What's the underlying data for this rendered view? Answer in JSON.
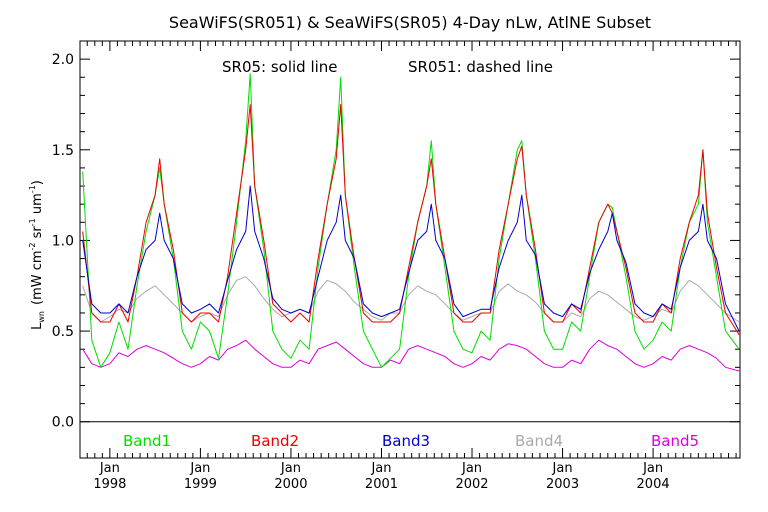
{
  "chart_data": {
    "type": "line",
    "title": "SeaWiFS(SR051) & SeaWiFS(SR05) 4-Day nLw, AtlNE Subset",
    "annotations": {
      "solid": "SR05: solid line",
      "dashed": "SR051: dashed line"
    },
    "ylabel": "L_wn (mW cm^-2 sr^-1 um^-1)",
    "ylabel_parts": {
      "l": "L",
      "l_sub": "wn",
      "open": "(mW cm",
      "e1": "-2",
      "mid1": " sr",
      "e2": "-1",
      "mid2": " um",
      "e3": "-1",
      "close": ")"
    },
    "xlabel": "",
    "xlim": [
      1997.67,
      2004.96
    ],
    "ylim": [
      -0.2,
      2.1
    ],
    "yticks": [
      {
        "value": 0.0,
        "label": "0.0"
      },
      {
        "value": 0.5,
        "label": "0.5"
      },
      {
        "value": 1.0,
        "label": "1.0"
      },
      {
        "value": 1.5,
        "label": "1.5"
      },
      {
        "value": 2.0,
        "label": "2.0"
      }
    ],
    "xticks": [
      {
        "value": 1998.0,
        "month": "Jan",
        "year": "1998"
      },
      {
        "value": 1999.0,
        "month": "Jan",
        "year": "1999"
      },
      {
        "value": 2000.0,
        "month": "Jan",
        "year": "2000"
      },
      {
        "value": 2001.0,
        "month": "Jan",
        "year": "2001"
      },
      {
        "value": 2002.0,
        "month": "Jan",
        "year": "2002"
      },
      {
        "value": 2003.0,
        "month": "Jan",
        "year": "2003"
      },
      {
        "value": 2004.0,
        "month": "Jan",
        "year": "2004"
      }
    ],
    "zero_line": 0.0,
    "legend_placement": "bottom",
    "series": [
      {
        "name": "Band1",
        "color": "#00dd00",
        "x": [
          1997.7,
          1997.8,
          1997.9,
          1998.0,
          1998.1,
          1998.2,
          1998.3,
          1998.4,
          1998.5,
          1998.55,
          1998.6,
          1998.7,
          1998.8,
          1998.9,
          1999.0,
          1999.1,
          1999.2,
          1999.3,
          1999.4,
          1999.5,
          1999.55,
          1999.6,
          1999.7,
          1999.8,
          1999.9,
          2000.0,
          2000.1,
          2000.2,
          2000.3,
          2000.4,
          2000.5,
          2000.55,
          2000.6,
          2000.7,
          2000.8,
          2000.9,
          2001.0,
          2001.1,
          2001.2,
          2001.3,
          2001.4,
          2001.5,
          2001.55,
          2001.6,
          2001.7,
          2001.8,
          2001.9,
          2002.0,
          2002.1,
          2002.2,
          2002.3,
          2002.4,
          2002.5,
          2002.55,
          2002.6,
          2002.7,
          2002.8,
          2002.9,
          2003.0,
          2003.1,
          2003.2,
          2003.3,
          2003.4,
          2003.5,
          2003.55,
          2003.6,
          2003.7,
          2003.8,
          2003.9,
          2004.0,
          2004.1,
          2004.2,
          2004.3,
          2004.4,
          2004.5,
          2004.55,
          2004.6,
          2004.7,
          2004.8,
          2004.95
        ],
        "y": [
          1.38,
          0.45,
          0.3,
          0.38,
          0.55,
          0.4,
          0.75,
          1.05,
          1.25,
          1.4,
          1.2,
          0.9,
          0.5,
          0.4,
          0.55,
          0.5,
          0.35,
          0.7,
          1.1,
          1.55,
          1.92,
          1.3,
          0.95,
          0.5,
          0.4,
          0.35,
          0.45,
          0.4,
          0.85,
          1.2,
          1.5,
          1.9,
          1.25,
          0.85,
          0.5,
          0.4,
          0.3,
          0.35,
          0.4,
          0.8,
          1.1,
          1.3,
          1.55,
          1.2,
          0.85,
          0.5,
          0.4,
          0.38,
          0.5,
          0.45,
          0.9,
          1.2,
          1.5,
          1.55,
          1.25,
          0.9,
          0.5,
          0.4,
          0.4,
          0.55,
          0.5,
          0.8,
          1.1,
          1.2,
          1.18,
          1.05,
          0.8,
          0.5,
          0.4,
          0.45,
          0.55,
          0.5,
          0.85,
          1.1,
          1.2,
          1.5,
          1.1,
          0.8,
          0.5,
          0.4
        ]
      },
      {
        "name": "Band2",
        "color": "#ee0000",
        "x": [
          1997.7,
          1997.8,
          1997.9,
          1998.0,
          1998.1,
          1998.2,
          1998.3,
          1998.4,
          1998.5,
          1998.55,
          1998.6,
          1998.7,
          1998.8,
          1998.9,
          1999.0,
          1999.1,
          1999.2,
          1999.3,
          1999.4,
          1999.5,
          1999.55,
          1999.6,
          1999.7,
          1999.8,
          1999.9,
          2000.0,
          2000.1,
          2000.2,
          2000.3,
          2000.4,
          2000.5,
          2000.55,
          2000.6,
          2000.7,
          2000.8,
          2000.9,
          2001.0,
          2001.1,
          2001.2,
          2001.3,
          2001.4,
          2001.5,
          2001.55,
          2001.6,
          2001.7,
          2001.8,
          2001.9,
          2002.0,
          2002.1,
          2002.2,
          2002.3,
          2002.4,
          2002.5,
          2002.55,
          2002.6,
          2002.7,
          2002.8,
          2002.9,
          2003.0,
          2003.1,
          2003.2,
          2003.3,
          2003.4,
          2003.5,
          2003.55,
          2003.6,
          2003.7,
          2003.8,
          2003.9,
          2004.0,
          2004.1,
          2004.2,
          2004.3,
          2004.4,
          2004.5,
          2004.55,
          2004.6,
          2004.7,
          2004.8,
          2004.95
        ],
        "y": [
          1.05,
          0.6,
          0.55,
          0.55,
          0.65,
          0.55,
          0.8,
          1.1,
          1.25,
          1.45,
          1.2,
          0.95,
          0.6,
          0.55,
          0.6,
          0.6,
          0.55,
          0.8,
          1.15,
          1.5,
          1.75,
          1.3,
          1.0,
          0.65,
          0.6,
          0.55,
          0.6,
          0.55,
          0.9,
          1.2,
          1.45,
          1.75,
          1.25,
          0.9,
          0.6,
          0.55,
          0.55,
          0.55,
          0.6,
          0.85,
          1.1,
          1.3,
          1.45,
          1.2,
          0.9,
          0.6,
          0.55,
          0.55,
          0.6,
          0.6,
          0.95,
          1.2,
          1.45,
          1.52,
          1.25,
          0.95,
          0.6,
          0.55,
          0.55,
          0.65,
          0.6,
          0.85,
          1.1,
          1.2,
          1.15,
          1.05,
          0.85,
          0.6,
          0.55,
          0.55,
          0.65,
          0.6,
          0.9,
          1.1,
          1.25,
          1.5,
          1.15,
          0.85,
          0.6,
          0.48
        ]
      },
      {
        "name": "Band3",
        "color": "#0000cc",
        "x": [
          1997.7,
          1997.8,
          1997.9,
          1998.0,
          1998.1,
          1998.2,
          1998.3,
          1998.4,
          1998.5,
          1998.55,
          1998.6,
          1998.7,
          1998.8,
          1998.9,
          1999.0,
          1999.1,
          1999.2,
          1999.3,
          1999.4,
          1999.5,
          1999.55,
          1999.6,
          1999.7,
          1999.8,
          1999.9,
          2000.0,
          2000.1,
          2000.2,
          2000.3,
          2000.4,
          2000.5,
          2000.55,
          2000.6,
          2000.7,
          2000.8,
          2000.9,
          2001.0,
          2001.1,
          2001.2,
          2001.3,
          2001.4,
          2001.5,
          2001.55,
          2001.6,
          2001.7,
          2001.8,
          2001.9,
          2002.0,
          2002.1,
          2002.2,
          2002.3,
          2002.4,
          2002.5,
          2002.55,
          2002.6,
          2002.7,
          2002.8,
          2002.9,
          2003.0,
          2003.1,
          2003.2,
          2003.3,
          2003.4,
          2003.5,
          2003.55,
          2003.6,
          2003.7,
          2003.8,
          2003.9,
          2004.0,
          2004.1,
          2004.2,
          2004.3,
          2004.4,
          2004.5,
          2004.55,
          2004.6,
          2004.7,
          2004.8,
          2004.95
        ],
        "y": [
          1.0,
          0.65,
          0.6,
          0.6,
          0.65,
          0.6,
          0.8,
          0.95,
          1.0,
          1.15,
          1.0,
          0.9,
          0.65,
          0.6,
          0.62,
          0.65,
          0.6,
          0.78,
          0.95,
          1.05,
          1.3,
          1.05,
          0.9,
          0.68,
          0.62,
          0.6,
          0.62,
          0.6,
          0.8,
          1.0,
          1.1,
          1.25,
          1.0,
          0.9,
          0.65,
          0.6,
          0.58,
          0.6,
          0.62,
          0.82,
          1.0,
          1.05,
          1.2,
          1.0,
          0.9,
          0.65,
          0.58,
          0.6,
          0.62,
          0.62,
          0.85,
          1.0,
          1.1,
          1.25,
          1.0,
          0.92,
          0.65,
          0.6,
          0.58,
          0.65,
          0.62,
          0.82,
          0.95,
          1.05,
          1.15,
          1.0,
          0.88,
          0.65,
          0.6,
          0.58,
          0.65,
          0.62,
          0.85,
          1.0,
          1.05,
          1.2,
          1.0,
          0.9,
          0.65,
          0.5
        ]
      },
      {
        "name": "Band4",
        "color": "#aaaaaa",
        "x": [
          1997.7,
          1997.8,
          1997.9,
          1998.0,
          1998.1,
          1998.2,
          1998.3,
          1998.4,
          1998.5,
          1998.6,
          1998.7,
          1998.8,
          1998.9,
          1999.0,
          1999.1,
          1999.2,
          1999.3,
          1999.4,
          1999.5,
          1999.6,
          1999.7,
          1999.8,
          1999.9,
          2000.0,
          2000.1,
          2000.2,
          2000.3,
          2000.4,
          2000.5,
          2000.6,
          2000.7,
          2000.8,
          2000.9,
          2001.0,
          2001.1,
          2001.2,
          2001.3,
          2001.4,
          2001.5,
          2001.6,
          2001.7,
          2001.8,
          2001.9,
          2002.0,
          2002.1,
          2002.2,
          2002.3,
          2002.4,
          2002.5,
          2002.6,
          2002.7,
          2002.8,
          2002.9,
          2003.0,
          2003.1,
          2003.2,
          2003.3,
          2003.4,
          2003.5,
          2003.6,
          2003.7,
          2003.8,
          2003.9,
          2004.0,
          2004.1,
          2004.2,
          2004.3,
          2004.4,
          2004.5,
          2004.6,
          2004.7,
          2004.8,
          2004.95
        ],
        "y": [
          0.75,
          0.6,
          0.55,
          0.58,
          0.62,
          0.6,
          0.68,
          0.72,
          0.75,
          0.7,
          0.65,
          0.6,
          0.55,
          0.58,
          0.6,
          0.58,
          0.7,
          0.78,
          0.8,
          0.75,
          0.68,
          0.62,
          0.58,
          0.6,
          0.62,
          0.6,
          0.72,
          0.78,
          0.76,
          0.72,
          0.66,
          0.62,
          0.58,
          0.56,
          0.6,
          0.6,
          0.7,
          0.75,
          0.72,
          0.7,
          0.65,
          0.6,
          0.56,
          0.58,
          0.6,
          0.6,
          0.72,
          0.76,
          0.72,
          0.7,
          0.66,
          0.6,
          0.55,
          0.55,
          0.6,
          0.58,
          0.68,
          0.72,
          0.7,
          0.66,
          0.62,
          0.58,
          0.56,
          0.58,
          0.62,
          0.6,
          0.72,
          0.78,
          0.75,
          0.7,
          0.65,
          0.6,
          0.55
        ]
      },
      {
        "name": "Band5",
        "color": "#dd00dd",
        "x": [
          1997.7,
          1997.8,
          1997.9,
          1998.0,
          1998.1,
          1998.2,
          1998.3,
          1998.4,
          1998.5,
          1998.6,
          1998.7,
          1998.8,
          1998.9,
          1999.0,
          1999.1,
          1999.2,
          1999.3,
          1999.4,
          1999.5,
          1999.6,
          1999.7,
          1999.8,
          1999.9,
          2000.0,
          2000.1,
          2000.2,
          2000.3,
          2000.4,
          2000.5,
          2000.6,
          2000.7,
          2000.8,
          2000.9,
          2001.0,
          2001.1,
          2001.2,
          2001.3,
          2001.4,
          2001.5,
          2001.6,
          2001.7,
          2001.8,
          2001.9,
          2002.0,
          2002.1,
          2002.2,
          2002.3,
          2002.4,
          2002.5,
          2002.6,
          2002.7,
          2002.8,
          2002.9,
          2003.0,
          2003.1,
          2003.2,
          2003.3,
          2003.4,
          2003.5,
          2003.6,
          2003.7,
          2003.8,
          2003.9,
          2004.0,
          2004.1,
          2004.2,
          2004.3,
          2004.4,
          2004.5,
          2004.6,
          2004.7,
          2004.8,
          2004.95
        ],
        "y": [
          0.4,
          0.32,
          0.3,
          0.32,
          0.38,
          0.36,
          0.4,
          0.42,
          0.4,
          0.38,
          0.35,
          0.32,
          0.3,
          0.32,
          0.36,
          0.34,
          0.4,
          0.42,
          0.45,
          0.4,
          0.36,
          0.32,
          0.3,
          0.3,
          0.34,
          0.32,
          0.4,
          0.42,
          0.44,
          0.4,
          0.36,
          0.32,
          0.3,
          0.3,
          0.34,
          0.32,
          0.4,
          0.42,
          0.4,
          0.38,
          0.36,
          0.32,
          0.3,
          0.32,
          0.36,
          0.34,
          0.4,
          0.43,
          0.42,
          0.4,
          0.36,
          0.32,
          0.3,
          0.3,
          0.34,
          0.32,
          0.4,
          0.45,
          0.42,
          0.4,
          0.36,
          0.32,
          0.3,
          0.32,
          0.36,
          0.34,
          0.4,
          0.42,
          0.4,
          0.38,
          0.35,
          0.3,
          0.28
        ]
      }
    ]
  }
}
